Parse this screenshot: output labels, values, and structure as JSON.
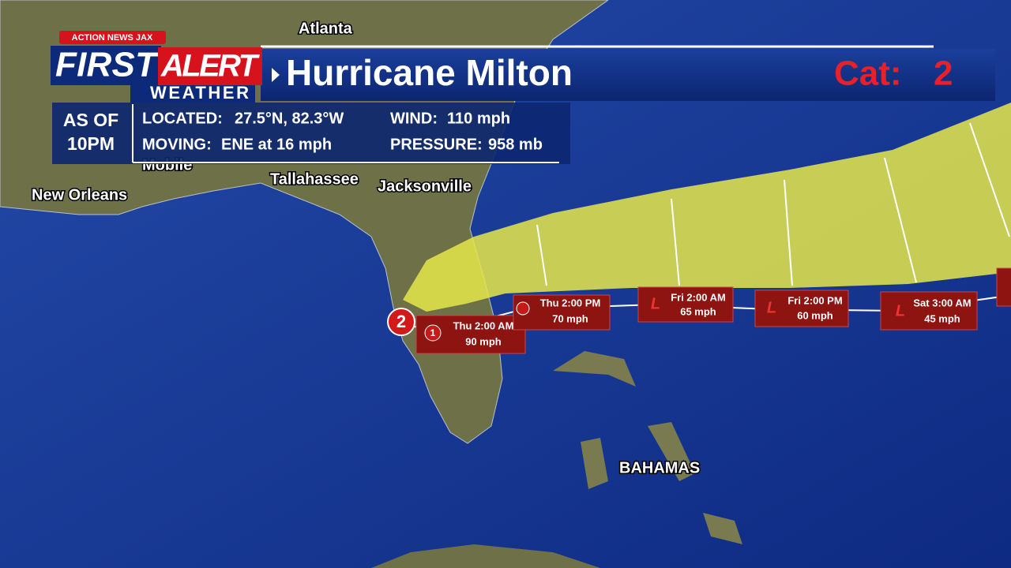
{
  "header": {
    "brand": {
      "station": "ACTION NEWS JAX",
      "first": "FIRST",
      "alert": "ALERT",
      "weather": "WEATHER"
    },
    "title": "Hurricane Milton",
    "category_label": "Cat:",
    "category": "2"
  },
  "info": {
    "as_of": [
      "AS OF",
      "10PM"
    ],
    "fields": [
      {
        "label": "LOCATED:",
        "value": "27.5°N, 82.3°W"
      },
      {
        "label": "WIND:",
        "value": "110 mph"
      },
      {
        "label": "MOVING:",
        "value": "ENE at 16 mph"
      },
      {
        "label": "PRESSURE:",
        "value": "958 mb"
      }
    ]
  },
  "map": {
    "cities": [
      "Atlanta",
      "Mobile",
      "New Orleans",
      "Tallahassee",
      "Jacksonville",
      "BAHAMAS"
    ],
    "current": {
      "symbol": "2"
    },
    "forecast": [
      {
        "symbol": "1",
        "time": "Thu 2:00 AM",
        "wind": "90 mph"
      },
      {
        "symbol": "",
        "time": "Thu 2:00 PM",
        "wind": "70 mph"
      },
      {
        "symbol": "L",
        "time": "Fri 2:00 AM",
        "wind": "65 mph"
      },
      {
        "symbol": "L",
        "time": "Fri 2:00 PM",
        "wind": "60 mph"
      },
      {
        "symbol": "L",
        "time": "Sat 3:00 AM",
        "wind": "45 mph"
      }
    ]
  }
}
